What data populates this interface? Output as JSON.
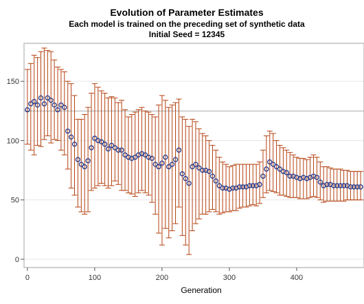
{
  "colors": {
    "whisker": "#b4400e",
    "marker": "#2b3e8c",
    "reference_line": "#a8a8a8",
    "grid": "#e6e6e6",
    "frame": "#a0a0a0"
  },
  "chart_data": {
    "type": "scatter",
    "title": "Evolution of Parameter Estimates",
    "subtitles": [
      "Each model is trained on the preceding set of synthetic data",
      "Initial Seed = 12345"
    ],
    "xlabel": "Generation",
    "ylabel": "",
    "xlim": [
      -5,
      500
    ],
    "ylim": [
      -7,
      182
    ],
    "x_ticks": [
      0,
      100,
      200,
      300,
      400
    ],
    "y_ticks": [
      0,
      50,
      100,
      150
    ],
    "grid": "horizontal",
    "reference_line_y": 125,
    "marker": "open-circle",
    "series": [
      {
        "x": [
          0,
          5,
          10,
          15,
          20,
          25,
          30,
          35,
          40,
          45,
          50,
          55,
          60,
          65,
          70,
          75,
          80,
          85,
          90,
          95,
          100,
          105,
          110,
          115,
          120,
          125,
          130,
          135,
          140,
          145,
          150,
          155,
          160,
          165,
          170,
          175,
          180,
          185,
          190,
          195,
          200,
          205,
          210,
          215,
          220,
          225,
          230,
          235,
          240,
          245,
          250,
          255,
          260,
          265,
          270,
          275,
          280,
          285,
          290,
          295,
          300,
          305,
          310,
          315,
          320,
          325,
          330,
          335,
          340,
          345,
          350,
          355,
          360,
          365,
          370,
          375,
          380,
          385,
          390,
          395,
          400,
          405,
          410,
          415,
          420,
          425,
          430,
          435,
          440,
          445,
          450,
          455,
          460,
          465,
          470,
          475,
          480,
          485,
          490,
          495
        ],
        "y": [
          126,
          131,
          133,
          130,
          136,
          131,
          136,
          134,
          130,
          126,
          130,
          128,
          108,
          103,
          97,
          84,
          80,
          78,
          83,
          94,
          102,
          100,
          99,
          97,
          93,
          96,
          94,
          92,
          92,
          88,
          86,
          85,
          86,
          88,
          89,
          88,
          86,
          85,
          80,
          78,
          81,
          86,
          78,
          80,
          84,
          92,
          72,
          68,
          64,
          78,
          80,
          77,
          75,
          75,
          74,
          70,
          66,
          62,
          60,
          60,
          59,
          60,
          60,
          61,
          61,
          61,
          62,
          62,
          62,
          63,
          70,
          76,
          82,
          80,
          78,
          76,
          74,
          73,
          70,
          70,
          69,
          68,
          69,
          68,
          69,
          70,
          69,
          65,
          62,
          63,
          63,
          62,
          62,
          62,
          62,
          62,
          61,
          61,
          61,
          61
        ],
        "lower": [
          97,
          92,
          88,
          96,
          95,
          101,
          104,
          98,
          101,
          100,
          92,
          88,
          76,
          60,
          54,
          44,
          40,
          38,
          40,
          58,
          60,
          62,
          64,
          62,
          60,
          62,
          66,
          63,
          58,
          58,
          56,
          55,
          53,
          56,
          58,
          56,
          54,
          48,
          38,
          22,
          12,
          26,
          18,
          24,
          30,
          44,
          20,
          12,
          4,
          24,
          30,
          34,
          38,
          38,
          40,
          42,
          40,
          38,
          39,
          40,
          40,
          41,
          41,
          43,
          44,
          44,
          45,
          46,
          45,
          47,
          52,
          56,
          58,
          57,
          56,
          54,
          54,
          53,
          52,
          52,
          52,
          51,
          51,
          51,
          52,
          53,
          52,
          50,
          48,
          49,
          49,
          49,
          49,
          49,
          49,
          50,
          50,
          50,
          50,
          50
        ],
        "upper": [
          160,
          165,
          172,
          170,
          175,
          178,
          176,
          175,
          168,
          162,
          160,
          158,
          150,
          148,
          138,
          118,
          118,
          122,
          128,
          140,
          148,
          145,
          142,
          140,
          136,
          137,
          136,
          132,
          134,
          126,
          120,
          122,
          124,
          126,
          128,
          125,
          124,
          122,
          120,
          130,
          138,
          134,
          128,
          130,
          132,
          135,
          120,
          118,
          112,
          118,
          116,
          110,
          106,
          104,
          100,
          96,
          92,
          86,
          82,
          80,
          78,
          79,
          80,
          80,
          80,
          80,
          80,
          80,
          80,
          82,
          92,
          104,
          108,
          106,
          100,
          96,
          94,
          92,
          90,
          88,
          86,
          85,
          85,
          84,
          86,
          88,
          86,
          82,
          78,
          78,
          77,
          76,
          76,
          76,
          75,
          75,
          74,
          74,
          74,
          74
        ]
      }
    ]
  }
}
